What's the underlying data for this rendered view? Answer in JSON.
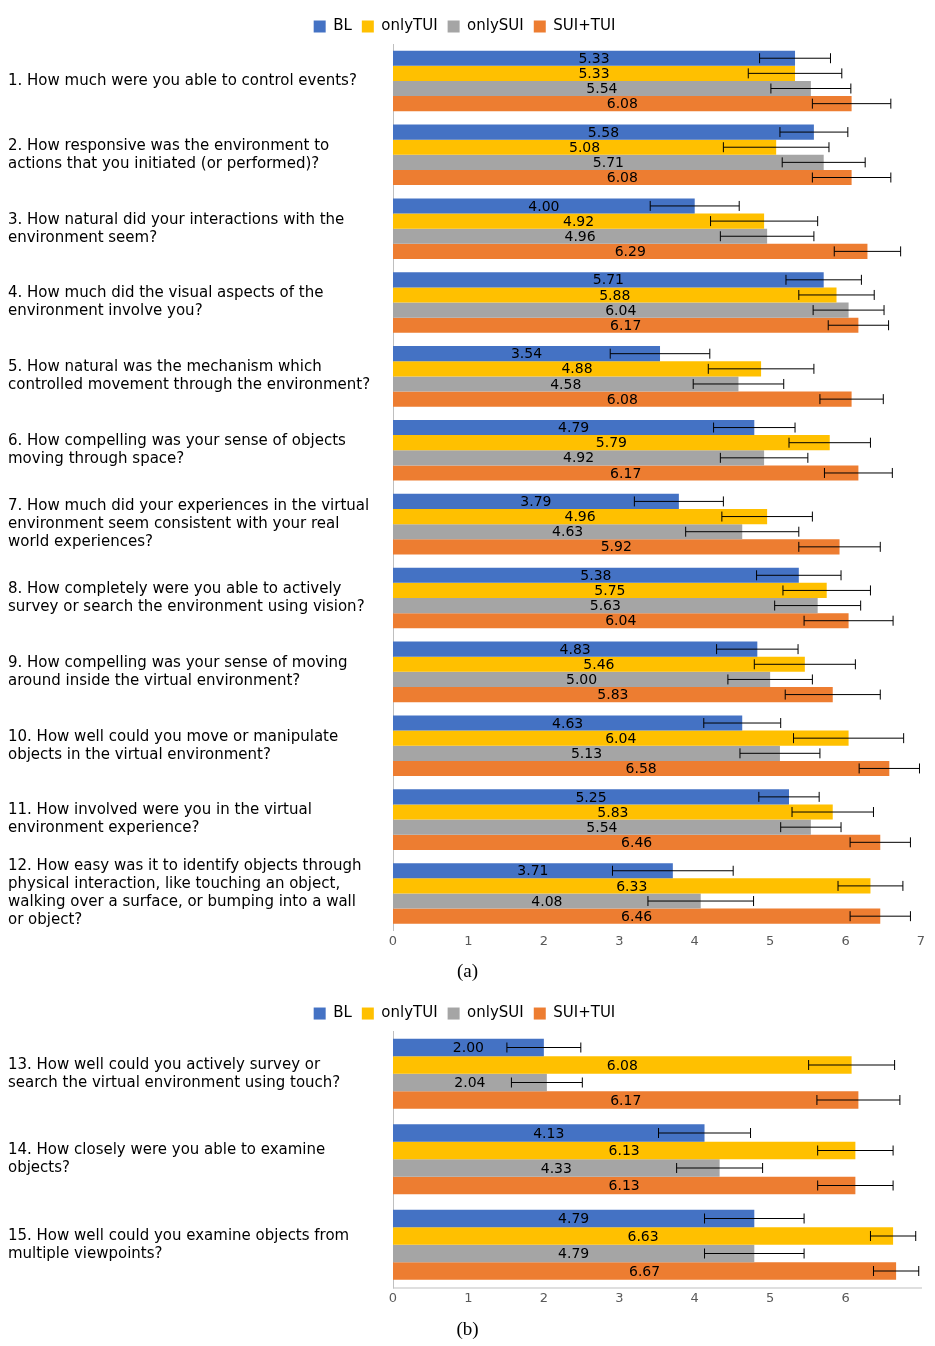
{
  "chart_data": [
    {
      "type": "bar",
      "orientation": "horizontal",
      "legend": "top",
      "grid": false,
      "xlim": [
        0,
        7
      ],
      "xticks": [
        0,
        1,
        2,
        3,
        4,
        5,
        6,
        7
      ],
      "annotations": [
        "(a)"
      ],
      "categories": [
        "1. How much were you able to control events?",
        "2. How responsive was the environment to actions that you initiated (or performed)?",
        "3. How natural did your interactions with the environment seem?",
        "4. How much did the visual aspects of the environment involve you?",
        "5. How natural was the mechanism which controlled movement through the environment?",
        "6. How compelling was your sense of objects moving through space?",
        "7. How much did your experiences in the virtual environment seem consistent with your real world experiences?",
        "8. How completely were you able to actively survey or search the environment using vision?",
        "9. How compelling was your sense of moving around inside the virtual environment?",
        "10. How well could you move or manipulate objects in the virtual environment?",
        "11. How involved were you in the virtual environment experience?",
        "12. How easy was it to identify objects through physical interaction, like touching an object, walking over a surface, or bumping into a wall or object?"
      ],
      "series": [
        {
          "name": "BL",
          "color": "#4472c4",
          "values": [
            5.33,
            5.58,
            4.0,
            5.71,
            3.54,
            4.79,
            3.79,
            5.38,
            4.83,
            4.63,
            5.25,
            3.71
          ],
          "value_labels": [
            "5.33",
            "5.58",
            "4.00",
            "5.71",
            "3.54",
            "4.79",
            "3.79",
            "5.38",
            "4.83",
            "4.63",
            "5.25",
            "3.71"
          ],
          "errors": [
            0.47,
            0.45,
            0.59,
            0.5,
            0.66,
            0.54,
            0.59,
            0.56,
            0.54,
            0.51,
            0.4,
            0.8
          ]
        },
        {
          "name": "onlyTUI",
          "color": "#ffc000",
          "values": [
            5.33,
            5.08,
            4.92,
            5.88,
            4.88,
            5.79,
            4.96,
            5.75,
            5.46,
            6.04,
            5.83,
            6.33
          ],
          "value_labels": [
            "5.33",
            "5.08",
            "4.92",
            "5.88",
            "4.88",
            "5.79",
            "4.96",
            "5.75",
            "5.46",
            "6.04",
            "5.83",
            "6.33"
          ],
          "errors": [
            0.62,
            0.7,
            0.71,
            0.5,
            0.7,
            0.54,
            0.6,
            0.58,
            0.67,
            0.73,
            0.54,
            0.43
          ]
        },
        {
          "name": "onlySUI",
          "color": "#a5a5a5",
          "values": [
            5.54,
            5.71,
            4.96,
            6.04,
            4.58,
            4.92,
            4.63,
            5.63,
            5.0,
            5.13,
            5.54,
            4.08
          ],
          "value_labels": [
            "5.54",
            "5.71",
            "4.96",
            "6.04",
            "4.58",
            "4.92",
            "4.63",
            "5.63",
            "5.00",
            "5.13",
            "5.54",
            "4.08"
          ],
          "errors": [
            0.53,
            0.55,
            0.62,
            0.47,
            0.6,
            0.58,
            0.75,
            0.57,
            0.56,
            0.53,
            0.4,
            0.7
          ]
        },
        {
          "name": "SUI+TUI",
          "color": "#ed7d31",
          "values": [
            6.08,
            6.08,
            6.29,
            6.17,
            6.08,
            6.17,
            5.92,
            6.04,
            5.83,
            6.58,
            6.46,
            6.46
          ],
          "value_labels": [
            "6.08",
            "6.08",
            "6.29",
            "6.17",
            "6.08",
            "6.17",
            "5.92",
            "6.04",
            "5.83",
            "6.58",
            "6.46",
            "6.46"
          ],
          "errors": [
            0.52,
            0.52,
            0.44,
            0.4,
            0.42,
            0.45,
            0.54,
            0.59,
            0.63,
            0.4,
            0.4,
            0.4
          ]
        }
      ]
    },
    {
      "type": "bar",
      "orientation": "horizontal",
      "legend": "top",
      "grid": false,
      "xlim": [
        0,
        7
      ],
      "xticks": [
        0,
        1,
        2,
        3,
        4,
        5,
        6
      ],
      "annotations": [
        "(b)"
      ],
      "categories": [
        "13. How well could you actively survey or search the virtual environment using touch?",
        "14. How closely were you able to examine objects?",
        "15. How well could you examine objects from multiple viewpoints?"
      ],
      "series": [
        {
          "name": "BL",
          "color": "#4472c4",
          "values": [
            2.0,
            4.13,
            4.79
          ],
          "value_labels": [
            "2.00",
            "4.13",
            "4.79"
          ],
          "errors": [
            0.49,
            0.61,
            0.66
          ]
        },
        {
          "name": "onlyTUI",
          "color": "#ffc000",
          "values": [
            6.08,
            6.13,
            6.63
          ],
          "value_labels": [
            "6.08",
            "6.13",
            "6.63"
          ],
          "errors": [
            0.57,
            0.5,
            0.3
          ]
        },
        {
          "name": "onlySUI",
          "color": "#a5a5a5",
          "values": [
            2.04,
            4.33,
            4.79
          ],
          "value_labels": [
            "2.04",
            "4.33",
            "4.79"
          ],
          "errors": [
            0.47,
            0.57,
            0.66
          ]
        },
        {
          "name": "SUI+TUI",
          "color": "#ed7d31",
          "values": [
            6.17,
            6.13,
            6.67
          ],
          "value_labels": [
            "6.17",
            "6.13",
            "6.67"
          ],
          "errors": [
            0.55,
            0.5,
            0.3
          ]
        }
      ]
    }
  ]
}
